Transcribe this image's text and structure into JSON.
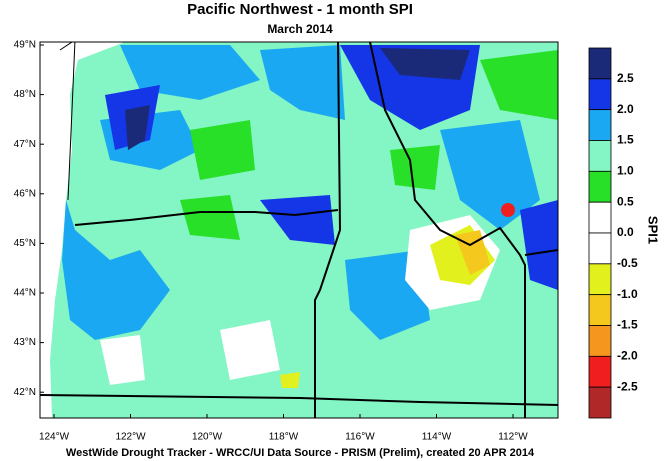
{
  "title": "Pacific Northwest - 1 month SPI",
  "subtitle": "March 2014",
  "map": {
    "lat_labels": [
      "49°N",
      "48°N",
      "47°N",
      "46°N",
      "45°N",
      "44°N",
      "43°N",
      "42°N"
    ],
    "lon_labels": [
      "124°W",
      "122°W",
      "120°W",
      "118°W",
      "116°W",
      "114°W",
      "112°W"
    ]
  },
  "colorbar": {
    "title": "SPI1",
    "colors": [
      "#1b2a78",
      "#1436e6",
      "#1aa8f2",
      "#84f5c4",
      "#28e028",
      "#ffffff",
      "#ffffff",
      "#e2f01e",
      "#f5c81e",
      "#f5961e",
      "#f01e1e",
      "#b02828"
    ],
    "ticks": [
      2.5,
      {
        "value": 2,
        "label": "2.0"
      },
      1.5,
      {
        "value": 1,
        "label": "1.0"
      },
      0.5,
      {
        "value": 0,
        "label": "0.0"
      },
      -0.5,
      {
        "value": -1,
        "label": "-1.0"
      },
      -1.5,
      {
        "value": -2,
        "label": "-2.0"
      },
      -2.5
    ]
  },
  "footer": "WestWide Drought Tracker - WRCC/UI  Data Source - PRISM (Prelim), created 20 APR 2014"
}
